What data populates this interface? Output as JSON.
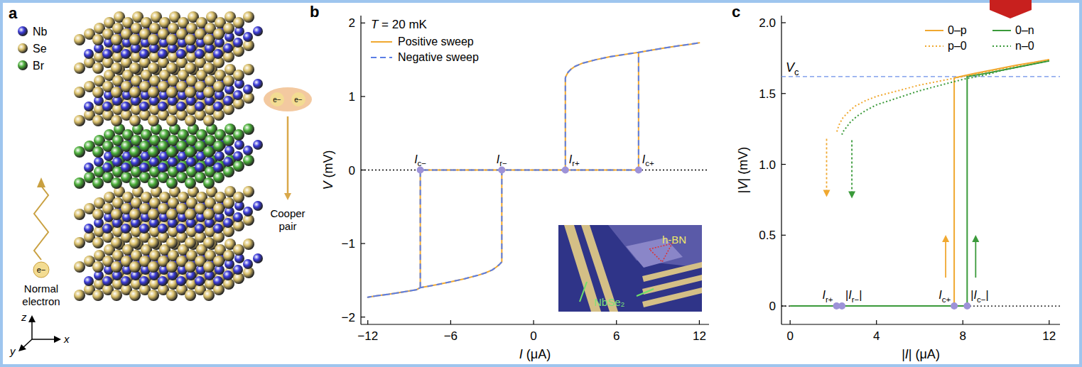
{
  "diagram": {
    "panel": "a",
    "legend": [
      {
        "name": "Nb",
        "color": "#3a3ad8"
      },
      {
        "name": "Se",
        "color": "#d9bf6a"
      },
      {
        "name": "Br",
        "color": "#4caf3a"
      }
    ],
    "particle": "e−",
    "left_label": "Normal electron",
    "right_label": "Cooper pair",
    "axes": [
      "z",
      "x",
      "y"
    ]
  },
  "chart_data": [
    {
      "panel": "b",
      "type": "line",
      "annotation": "T = 20 mK",
      "xlabel": "I (μA)",
      "ylabel": "V (mV)",
      "xlim": [
        -12.5,
        12.7
      ],
      "ylim": [
        -2.1,
        2.1
      ],
      "xticks": [
        {
          "value": -12,
          "label": "−12"
        },
        {
          "value": -6,
          "label": "−6"
        },
        0,
        6,
        12
      ],
      "yticks": [
        {
          "value": -2,
          "label": "−2"
        },
        {
          "value": -1,
          "label": "−1"
        },
        0,
        1,
        2
      ],
      "grid": false,
      "legend": "upper left",
      "series": [
        {
          "name": "Positive sweep",
          "color": "#f0a830",
          "line_style": "solid",
          "x": [
            0,
            7.6,
            7.6,
            8.5,
            9.5,
            10.5,
            11.3,
            12,
            11.3,
            10.5,
            9.5,
            8.5,
            7.6,
            6.5,
            5.5,
            4.5,
            3.5,
            3,
            2.7,
            2.5,
            2.35,
            2.3,
            2.3,
            0,
            -8.2,
            -8.2,
            -8.5,
            -9.5,
            -10.5,
            -11.3,
            -12,
            -11.3,
            -10.5,
            -9.5,
            -8.5,
            -8.2,
            -7,
            -6,
            -5,
            -4,
            -3.5,
            -3,
            -2.7,
            -2.5,
            -2.35,
            -2.3,
            -2.3,
            0
          ],
          "values": [
            0,
            0,
            1.6,
            1.63,
            1.66,
            1.69,
            1.71,
            1.73,
            1.71,
            1.69,
            1.66,
            1.63,
            1.6,
            1.57,
            1.54,
            1.5,
            1.45,
            1.41,
            1.37,
            1.33,
            1.28,
            1.25,
            0,
            0,
            0,
            -1.6,
            -1.63,
            -1.66,
            -1.69,
            -1.71,
            -1.73,
            -1.71,
            -1.69,
            -1.66,
            -1.63,
            -1.6,
            -1.56,
            -1.52,
            -1.48,
            -1.43,
            -1.4,
            -1.36,
            -1.32,
            -1.29,
            -1.26,
            -1.25,
            0,
            0
          ]
        },
        {
          "name": "Negative sweep",
          "color": "#5b7ee5",
          "line_style": "dashed",
          "x": [
            0,
            7.6,
            7.6,
            8.5,
            9.5,
            10.5,
            11.3,
            12,
            11.3,
            10.5,
            9.5,
            8.5,
            7.6,
            6.5,
            5.5,
            4.5,
            3.5,
            3,
            2.7,
            2.5,
            2.35,
            2.3,
            2.3,
            0,
            -8.2,
            -8.2,
            -8.5,
            -9.5,
            -10.5,
            -11.3,
            -12,
            -11.3,
            -10.5,
            -9.5,
            -8.5,
            -8.2,
            -7,
            -6,
            -5,
            -4,
            -3.5,
            -3,
            -2.7,
            -2.5,
            -2.35,
            -2.3,
            -2.3,
            0
          ],
          "values": [
            0,
            0,
            1.6,
            1.63,
            1.66,
            1.69,
            1.71,
            1.73,
            1.71,
            1.69,
            1.66,
            1.63,
            1.6,
            1.57,
            1.54,
            1.5,
            1.45,
            1.41,
            1.37,
            1.33,
            1.28,
            1.25,
            0,
            0,
            0,
            -1.6,
            -1.63,
            -1.66,
            -1.69,
            -1.71,
            -1.73,
            -1.71,
            -1.69,
            -1.66,
            -1.63,
            -1.6,
            -1.56,
            -1.52,
            -1.48,
            -1.43,
            -1.4,
            -1.36,
            -1.32,
            -1.29,
            -1.26,
            -1.25,
            0,
            0
          ]
        }
      ],
      "points": [
        {
          "label": "Ic−",
          "x": -8.2,
          "y": 0
        },
        {
          "label": "Ir−",
          "x": -2.3,
          "y": 0
        },
        {
          "label": "Ir+",
          "x": 2.3,
          "y": 0
        },
        {
          "label": "Ic+",
          "x": 7.6,
          "y": 0
        }
      ],
      "hlines": [
        {
          "y": 0,
          "color": "#000000",
          "line_style": "dotted"
        }
      ],
      "inset": {
        "labels": [
          "h-BN",
          "NbSe₂"
        ]
      }
    },
    {
      "panel": "c",
      "type": "line",
      "xlabel": "|I| (μA)",
      "ylabel": "|V| (mV)",
      "xlim": [
        -0.4,
        12.5
      ],
      "ylim": [
        -0.13,
        2.05
      ],
      "xticks": [
        0,
        4,
        8,
        12
      ],
      "yticks": [
        0,
        0.5,
        {
          "value": 1,
          "label": "1.0"
        },
        1.5,
        {
          "value": 2,
          "label": "2.0"
        }
      ],
      "grid": false,
      "legend": "upper right",
      "series": [
        {
          "name": "0–p",
          "color": "#f0a830",
          "line_style": "solid",
          "x": [
            0,
            7.6,
            7.6,
            8.5,
            9.5,
            10.5,
            11.3,
            12
          ],
          "values": [
            0,
            0,
            1.61,
            1.64,
            1.67,
            1.7,
            1.72,
            1.74
          ]
        },
        {
          "name": "0–n",
          "color": "#3a9a3a",
          "line_style": "solid",
          "x": [
            0,
            8.2,
            8.2,
            9,
            10,
            11,
            12
          ],
          "values": [
            0,
            0,
            1.62,
            1.64,
            1.67,
            1.7,
            1.73
          ]
        },
        {
          "name": "p–0",
          "color": "#f0a830",
          "line_style": "dotted",
          "x": [
            12,
            11,
            10,
            9,
            8,
            7,
            6,
            5,
            4,
            3.5,
            3,
            2.7,
            2.45,
            2.3,
            2.2,
            2.15
          ],
          "values": [
            1.74,
            1.71,
            1.68,
            1.65,
            1.62,
            1.59,
            1.56,
            1.52,
            1.48,
            1.45,
            1.41,
            1.37,
            1.33,
            1.29,
            1.25,
            1.22
          ]
        },
        {
          "name": "n–0",
          "color": "#3a9a3a",
          "line_style": "dotted",
          "x": [
            12,
            11,
            10,
            9,
            8,
            7,
            6,
            5,
            4,
            3.5,
            3.1,
            2.8,
            2.6,
            2.45,
            2.4
          ],
          "values": [
            1.73,
            1.7,
            1.67,
            1.63,
            1.6,
            1.56,
            1.52,
            1.47,
            1.42,
            1.38,
            1.34,
            1.3,
            1.26,
            1.23,
            1.21
          ]
        }
      ],
      "points": [
        {
          "label": "Ir+",
          "x": 2.15,
          "y": 0
        },
        {
          "label": "|Ir−|",
          "x": 2.4,
          "y": 0
        },
        {
          "label": "Ic+",
          "x": 7.6,
          "y": 0
        },
        {
          "label": "|Ic−|",
          "x": 8.2,
          "y": 0
        }
      ],
      "hlines": [
        {
          "label": "Vc",
          "y": 1.62,
          "color": "#6a8ee8",
          "line_style": "dashed"
        },
        {
          "y": 0,
          "color": "#000000",
          "line_style": "dotted"
        }
      ]
    }
  ]
}
